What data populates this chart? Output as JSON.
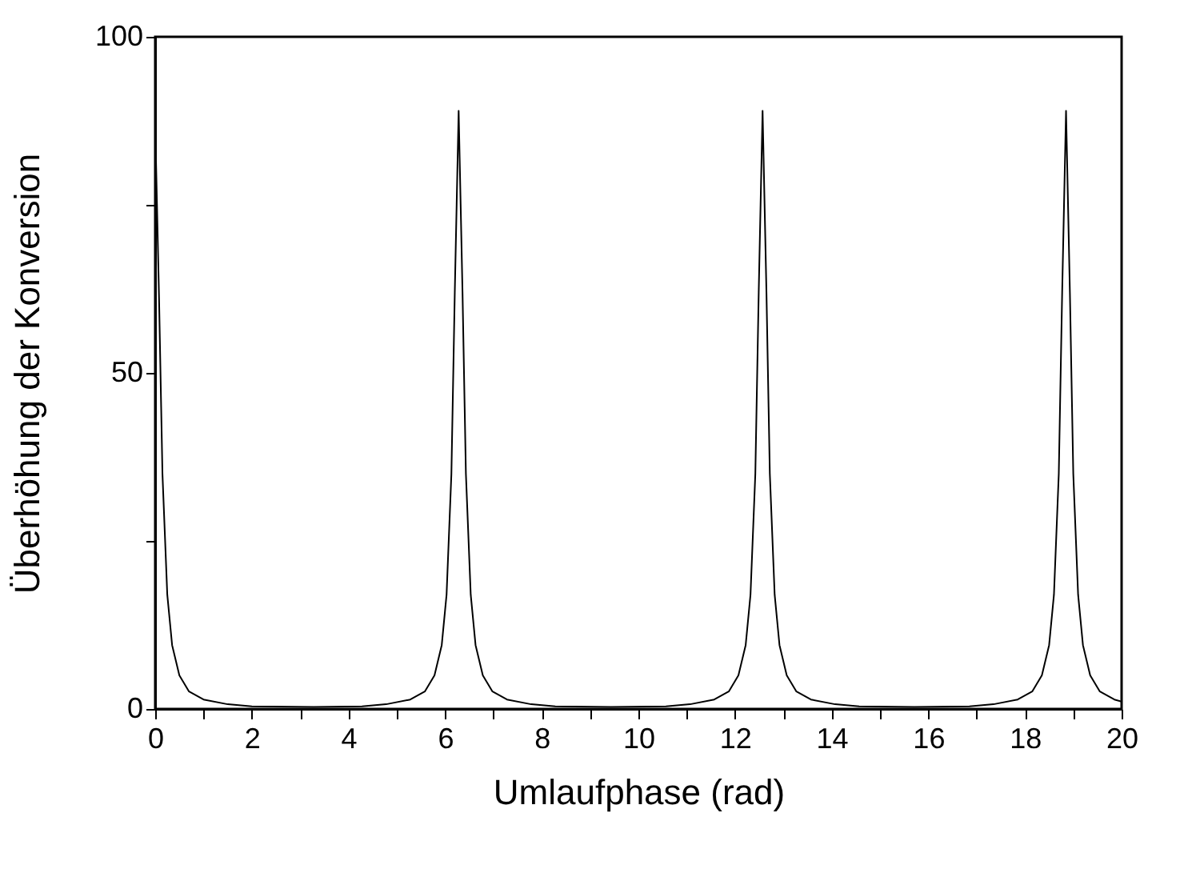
{
  "chart_data": {
    "type": "line",
    "xlabel": "Umlaufphase  (rad)",
    "ylabel": "Überhöhung der Konversion",
    "x": [
      0,
      0.08,
      0.15,
      0.25,
      0.35,
      0.5,
      0.7,
      1,
      1.5,
      2,
      3.28,
      4.28,
      4.78,
      5.28,
      5.58,
      5.78,
      5.93,
      6.03,
      6.13,
      6.2,
      6.28,
      6.36,
      6.43,
      6.53,
      6.63,
      6.78,
      6.98,
      7.28,
      7.78,
      8.28,
      9.43,
      10.57,
      11.07,
      11.57,
      11.87,
      12.07,
      12.22,
      12.32,
      12.42,
      12.49,
      12.57,
      12.65,
      12.72,
      12.82,
      12.92,
      13.07,
      13.27,
      13.57,
      14.07,
      14.57,
      15.71,
      16.85,
      17.35,
      17.85,
      18.15,
      18.35,
      18.5,
      18.6,
      18.7,
      18.77,
      18.85,
      18.93,
      19.0,
      19.1,
      19.2,
      19.35,
      19.55,
      19.85,
      20
    ],
    "series": [
      {
        "color": "#000000",
        "values": [
          87,
          61,
          35,
          17,
          9.5,
          5,
          2.6,
          1.4,
          0.7,
          0.4,
          0.3,
          0.4,
          0.7,
          1.4,
          2.6,
          5,
          9.5,
          17,
          35,
          62,
          89,
          62,
          35,
          17,
          9.5,
          5,
          2.6,
          1.4,
          0.7,
          0.4,
          0.3,
          0.4,
          0.7,
          1.4,
          2.6,
          5,
          9.5,
          17,
          35,
          62,
          89,
          62,
          35,
          17,
          9.5,
          5,
          2.6,
          1.4,
          0.7,
          0.4,
          0.3,
          0.4,
          0.7,
          1.4,
          2.6,
          5,
          9.5,
          17,
          35,
          62,
          89,
          62,
          35,
          17,
          9.5,
          5,
          2.6,
          1.4,
          1.1
        ]
      }
    ],
    "xlim": [
      0,
      20
    ],
    "ylim": [
      0,
      100
    ],
    "xticks": [
      0,
      {
        "value": 1,
        "label": null
      },
      2,
      {
        "value": 3,
        "label": null
      },
      4,
      {
        "value": 5,
        "label": null
      },
      6,
      {
        "value": 7,
        "label": null
      },
      8,
      {
        "value": 9,
        "label": null
      },
      10,
      {
        "value": 11,
        "label": null
      },
      12,
      {
        "value": 13,
        "label": null
      },
      14,
      {
        "value": 15,
        "label": null
      },
      16,
      {
        "value": 17,
        "label": null
      },
      18,
      {
        "value": 19,
        "label": null
      },
      20
    ],
    "yticks": [
      0,
      {
        "value": 25,
        "label": null
      },
      50,
      {
        "value": 75,
        "label": null
      },
      100
    ],
    "grid": false,
    "marker": "none",
    "line_style": "solid"
  }
}
